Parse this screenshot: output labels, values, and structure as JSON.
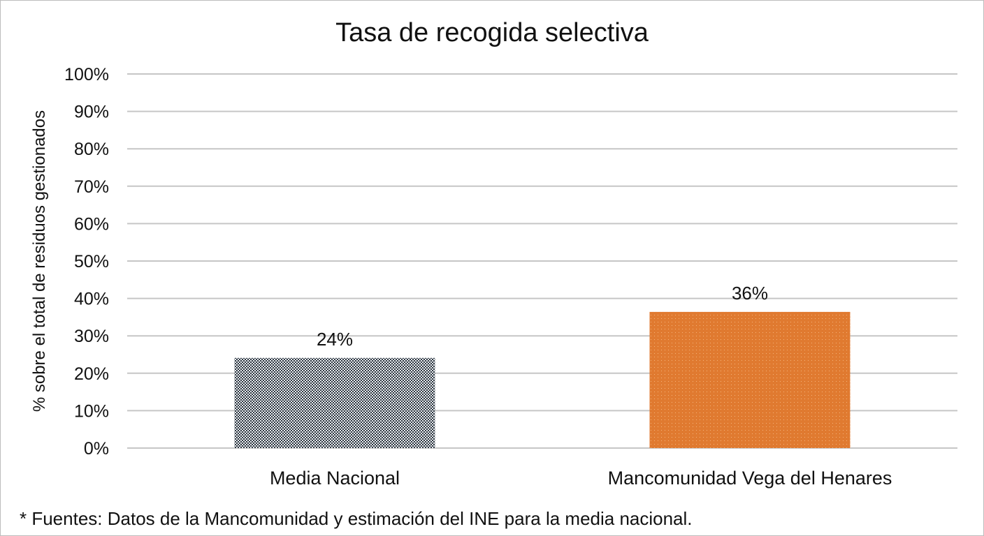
{
  "chart_data": {
    "type": "bar",
    "title": "Tasa de recogida selectiva",
    "xlabel": "",
    "ylabel": "% sobre el total de residuos gestionados",
    "categories": [
      "Media Nacional",
      "Mancomunidad Vega del Henares"
    ],
    "values": [
      24.1,
      36.4
    ],
    "data_labels": [
      "24%",
      "36%"
    ],
    "ylim": [
      0,
      100
    ],
    "yticks": [
      0,
      10,
      20,
      30,
      40,
      50,
      60,
      70,
      80,
      90,
      100
    ],
    "ytick_labels": [
      "0%",
      "10%",
      "20%",
      "30%",
      "40%",
      "50%",
      "60%",
      "70%",
      "80%",
      "90%",
      "100%"
    ],
    "grid": true,
    "bar_colors": [
      "#3a4350",
      "#e07a30"
    ],
    "footnote": "* Fuentes: Datos de la Mancomunidad y estimación del INE para la media nacional."
  }
}
